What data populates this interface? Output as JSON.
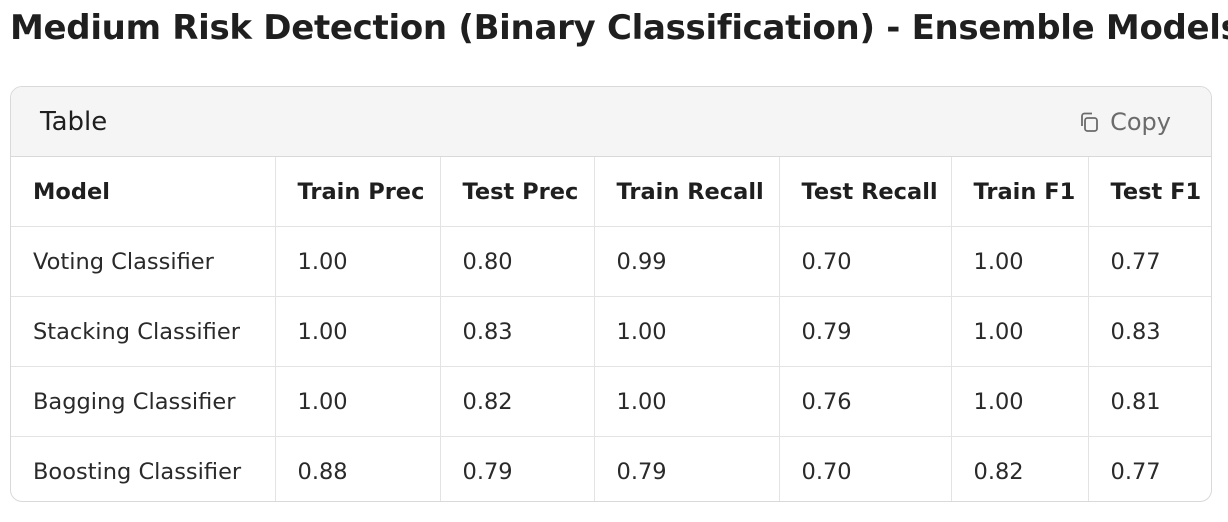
{
  "page": {
    "title": "Medium Risk Detection (Binary Classification) - Ensemble Models"
  },
  "card": {
    "title": "Table",
    "copy_label": "Copy",
    "copy_icon": "copy-icon"
  },
  "table": {
    "headers": [
      "Model",
      "Train Prec",
      "Test Prec",
      "Train Recall",
      "Test Recall",
      "Train F1",
      "Test F1"
    ],
    "rows": [
      [
        "Voting Classifier",
        "1.00",
        "0.80",
        "0.99",
        "0.70",
        "1.00",
        "0.77"
      ],
      [
        "Stacking Classifier",
        "1.00",
        "0.83",
        "1.00",
        "0.79",
        "1.00",
        "0.83"
      ],
      [
        "Bagging Classifier",
        "1.00",
        "0.82",
        "1.00",
        "0.76",
        "1.00",
        "0.81"
      ],
      [
        "Boosting Classifier",
        "0.88",
        "0.79",
        "0.79",
        "0.70",
        "0.82",
        "0.77"
      ]
    ]
  }
}
